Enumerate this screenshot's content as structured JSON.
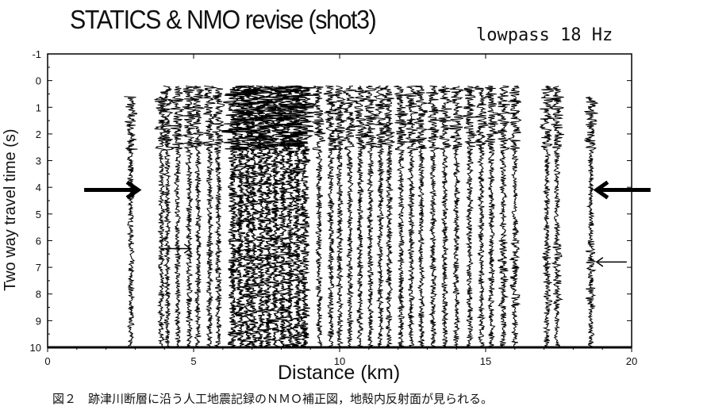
{
  "figure": {
    "title": "STATICS & NMO revise (shot3)",
    "subtitle": "lowpass 18 Hz",
    "caption": "図２　跡津川断層に沿う人工地震記録のＮＭＯ補正図，地殻内反射面が見られる。"
  },
  "chart_data": {
    "type": "seismic-section",
    "xlabel": "Distance (km)",
    "ylabel": "Two way travel time (s)",
    "xlim": [
      0,
      20
    ],
    "ylim": [
      10,
      -1
    ],
    "x_ticks": [
      "0",
      "5",
      "10",
      "15",
      "20"
    ],
    "y_ticks": [
      "-1",
      "0",
      "1",
      "2",
      "3",
      "4",
      "5",
      "6",
      "7",
      "8",
      "9",
      "10"
    ],
    "arrows": [
      {
        "style": "thick",
        "direction": "right",
        "x_km": 3.1,
        "t_s": 4.1
      },
      {
        "style": "thick",
        "direction": "left",
        "x_km": 18.8,
        "t_s": 4.1
      },
      {
        "style": "thin",
        "direction": "right",
        "x_km": 4.9,
        "t_s": 6.3
      },
      {
        "style": "thin",
        "direction": "left",
        "x_km": 18.8,
        "t_s": 6.8
      }
    ]
  }
}
